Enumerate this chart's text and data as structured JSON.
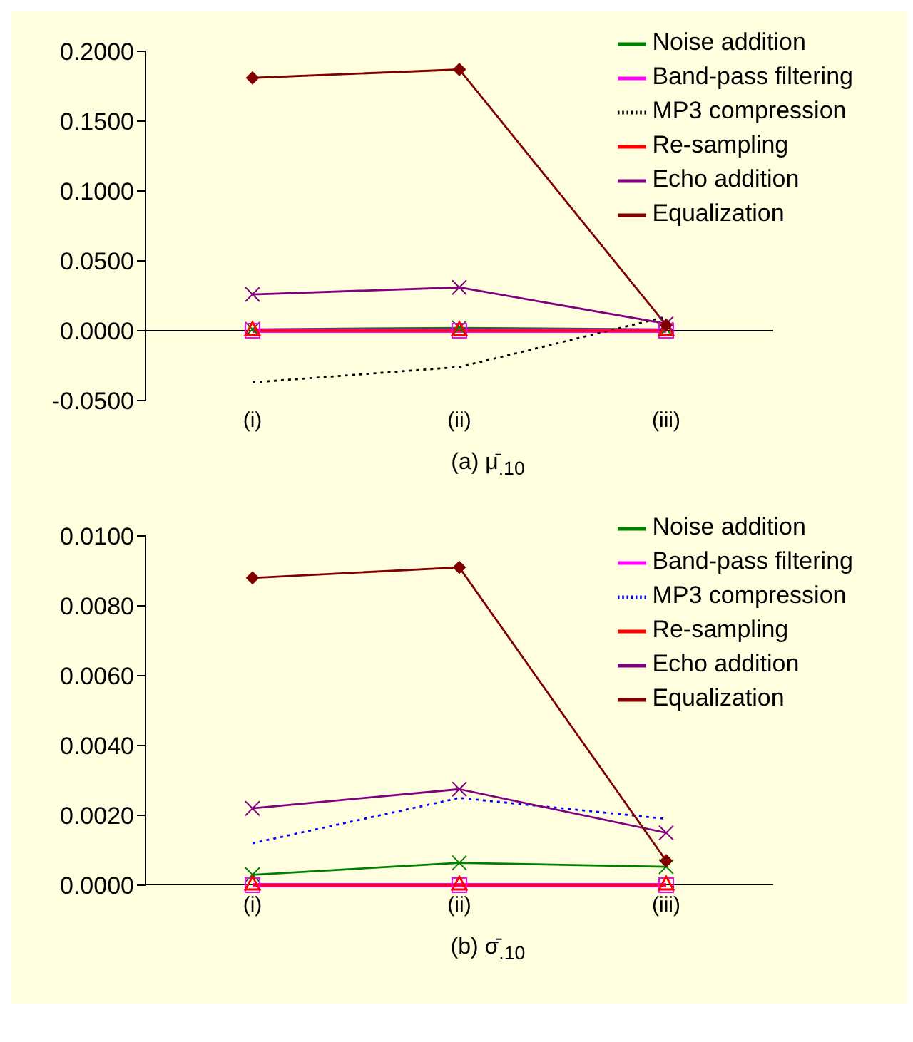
{
  "chart_data": [
    {
      "type": "line",
      "title": "(a)  μ̄$_{.10}$",
      "categories": [
        "(i)",
        "(ii)",
        "(iii)"
      ],
      "ylim": [
        -0.05,
        0.2
      ],
      "yticks": [
        {
          "value": -0.05,
          "label": "-0.0500"
        },
        {
          "value": 0,
          "label": "0.0000"
        },
        {
          "value": 0.05,
          "label": "0.0500"
        },
        {
          "value": 0.1,
          "label": "0.1000"
        },
        {
          "value": 0.15,
          "label": "0.1500"
        },
        {
          "value": 0.2,
          "label": "0.2000"
        }
      ],
      "grid": false,
      "legend": "top right",
      "series": [
        {
          "name": "Noise addition",
          "color": "#008000",
          "marker": "cross",
          "line_style": "solid",
          "values": [
            0.001,
            0.002,
            0.001
          ]
        },
        {
          "name": "Band-pass filtering",
          "color": "#ff00ff",
          "marker": "square",
          "line_style": "solid",
          "values": [
            0,
            0,
            0
          ]
        },
        {
          "name": "MP3 compression",
          "color": "#000000",
          "marker": "none",
          "line_style": "dotted",
          "values": [
            -0.037,
            -0.026,
            0.01
          ]
        },
        {
          "name": "Re-sampling",
          "color": "#ff0000",
          "marker": "triangle",
          "line_style": "solid",
          "values": [
            0,
            0,
            0
          ]
        },
        {
          "name": "Echo addition",
          "color": "#800080",
          "marker": "cross",
          "line_style": "solid",
          "values": [
            0.026,
            0.031,
            0.005
          ]
        },
        {
          "name": "Equalization",
          "color": "#800000",
          "marker": "diamond",
          "line_style": "solid",
          "values": [
            0.181,
            0.187,
            0.004
          ]
        }
      ]
    },
    {
      "type": "line",
      "title": "(b)  σ̄$_{.10}$",
      "categories": [
        "(i)",
        "(ii)",
        "(iii)"
      ],
      "ylim": [
        0,
        0.01
      ],
      "yticks": [
        {
          "value": 0,
          "label": "0.0000"
        },
        {
          "value": 0.002,
          "label": "0.0020"
        },
        {
          "value": 0.004,
          "label": "0.0040"
        },
        {
          "value": 0.006,
          "label": "0.0060"
        },
        {
          "value": 0.008,
          "label": "0.0080"
        },
        {
          "value": 0.01,
          "label": "0.0100"
        }
      ],
      "grid": false,
      "legend": "top right",
      "series": [
        {
          "name": "Noise addition",
          "color": "#008000",
          "marker": "cross",
          "line_style": "solid",
          "values": [
            0.0003,
            0.00064,
            0.00053
          ]
        },
        {
          "name": "Band-pass filtering",
          "color": "#ff00ff",
          "marker": "square",
          "line_style": "solid",
          "values": [
            0,
            0,
            0
          ]
        },
        {
          "name": "MP3 compression",
          "color": "#0000ff",
          "marker": "none",
          "line_style": "dotted",
          "values": [
            0.0012,
            0.0025,
            0.0019
          ]
        },
        {
          "name": "Re-sampling",
          "color": "#ff0000",
          "marker": "triangle",
          "line_style": "solid",
          "values": [
            0,
            0,
            0
          ]
        },
        {
          "name": "Echo addition",
          "color": "#800080",
          "marker": "cross",
          "line_style": "solid",
          "values": [
            0.0022,
            0.00275,
            0.0015
          ]
        },
        {
          "name": "Equalization",
          "color": "#800000",
          "marker": "diamond",
          "line_style": "solid",
          "values": [
            0.0088,
            0.0091,
            0.0007
          ]
        }
      ]
    }
  ]
}
